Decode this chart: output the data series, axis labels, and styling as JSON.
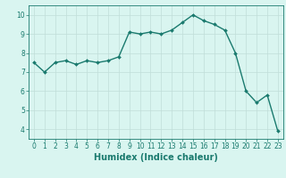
{
  "x": [
    0,
    1,
    2,
    3,
    4,
    5,
    6,
    7,
    8,
    9,
    10,
    11,
    12,
    13,
    14,
    15,
    16,
    17,
    18,
    19,
    20,
    21,
    22,
    23
  ],
  "y": [
    7.5,
    7.0,
    7.5,
    7.6,
    7.4,
    7.6,
    7.5,
    7.6,
    7.8,
    9.1,
    9.0,
    9.1,
    9.0,
    9.2,
    9.6,
    10.0,
    9.7,
    9.5,
    9.2,
    8.0,
    6.0,
    5.4,
    5.8,
    3.9
  ],
  "line_color": "#1a7a6e",
  "marker": "D",
  "marker_size": 2.0,
  "linewidth": 1.0,
  "background_color": "#d9f5f0",
  "grid_color": "#c0ddd8",
  "tick_color": "#1a7a6e",
  "xlabel": "Humidex (Indice chaleur)",
  "xlabel_fontsize": 7,
  "xlim": [
    -0.5,
    23.5
  ],
  "ylim": [
    3.5,
    10.5
  ],
  "yticks": [
    4,
    5,
    6,
    7,
    8,
    9,
    10
  ],
  "xticks": [
    0,
    1,
    2,
    3,
    4,
    5,
    6,
    7,
    8,
    9,
    10,
    11,
    12,
    13,
    14,
    15,
    16,
    17,
    18,
    19,
    20,
    21,
    22,
    23
  ],
  "tick_fontsize": 5.5
}
